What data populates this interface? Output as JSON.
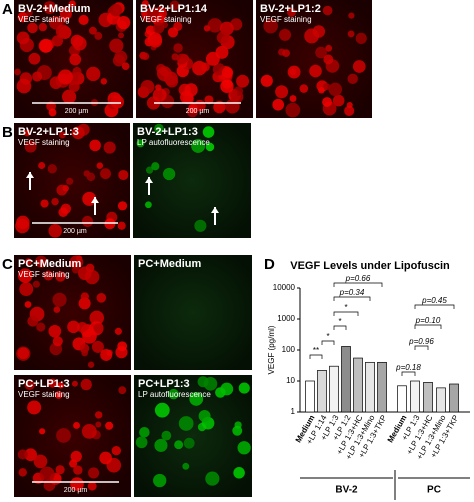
{
  "panels": [
    {
      "label": "A",
      "images": [
        {
          "title": "BV-2+Medium",
          "subtitle": "VEGF staining",
          "scale": "200 µm"
        },
        {
          "title": "BV-2+LP1:14",
          "subtitle": "VEGF staining",
          "scale": "200 µm"
        },
        {
          "title": "BV-2+LP1:2",
          "subtitle": "VEGF staining"
        }
      ]
    },
    {
      "label": "B",
      "images": [
        {
          "title": "BV-2+LP1:3",
          "subtitle": "VEGF staining",
          "scale": "200 µm"
        },
        {
          "title": "BV-2+LP1:3",
          "subtitle": "LP autofluorescence"
        }
      ]
    },
    {
      "label": "C",
      "images": [
        {
          "title": "PC+Medium",
          "subtitle": "VEGF staining"
        },
        {
          "title": "PC+Medium"
        },
        {
          "title": "PC+LP1:3",
          "subtitle": "VEGF staining",
          "scale": "200 µm"
        },
        {
          "title": "PC+LP1:3",
          "subtitle": "LP autofluorescence"
        }
      ]
    },
    {
      "label": "D"
    }
  ],
  "chart_data": {
    "type": "bar",
    "title": "VEGF Levels under Lipofuscin",
    "y_label": "VEGF (pg/ml)",
    "log_scale": true,
    "ylim": [
      1,
      10000
    ],
    "yticks": [
      1,
      10,
      100,
      1000,
      10000
    ],
    "categories": [
      "Medium",
      "+LP 1:14",
      "+LP 1:3",
      "+LP 1:2",
      "+LP 1:3+HC",
      "+LP 1:3+Mino",
      "+LP 1:3+TKP",
      "Medium",
      "+LP 1:3",
      "+LP 1:3+HC",
      "+LP 1:3+Mino",
      "+LP 1:3+TKP"
    ],
    "values": [
      10,
      22,
      30,
      130,
      55,
      40,
      40,
      7,
      10,
      9,
      6,
      8
    ],
    "colors": [
      "#ffffff",
      "#d9d9d9",
      "#f2f2f2",
      "#8c8c8c",
      "#bfbfbf",
      "#e6e6e6",
      "#a6a6a6",
      "#ffffff",
      "#f2f2f2",
      "#bfbfbf",
      "#e6e6e6",
      "#a6a6a6"
    ],
    "groups": [
      "BV-2",
      "PC"
    ],
    "annotations": [
      "**",
      "*",
      "*",
      "*",
      "p=0.34",
      "p=0.66",
      "p=0.18",
      "p=0.96",
      "p=0.10",
      "p=0.45"
    ]
  }
}
